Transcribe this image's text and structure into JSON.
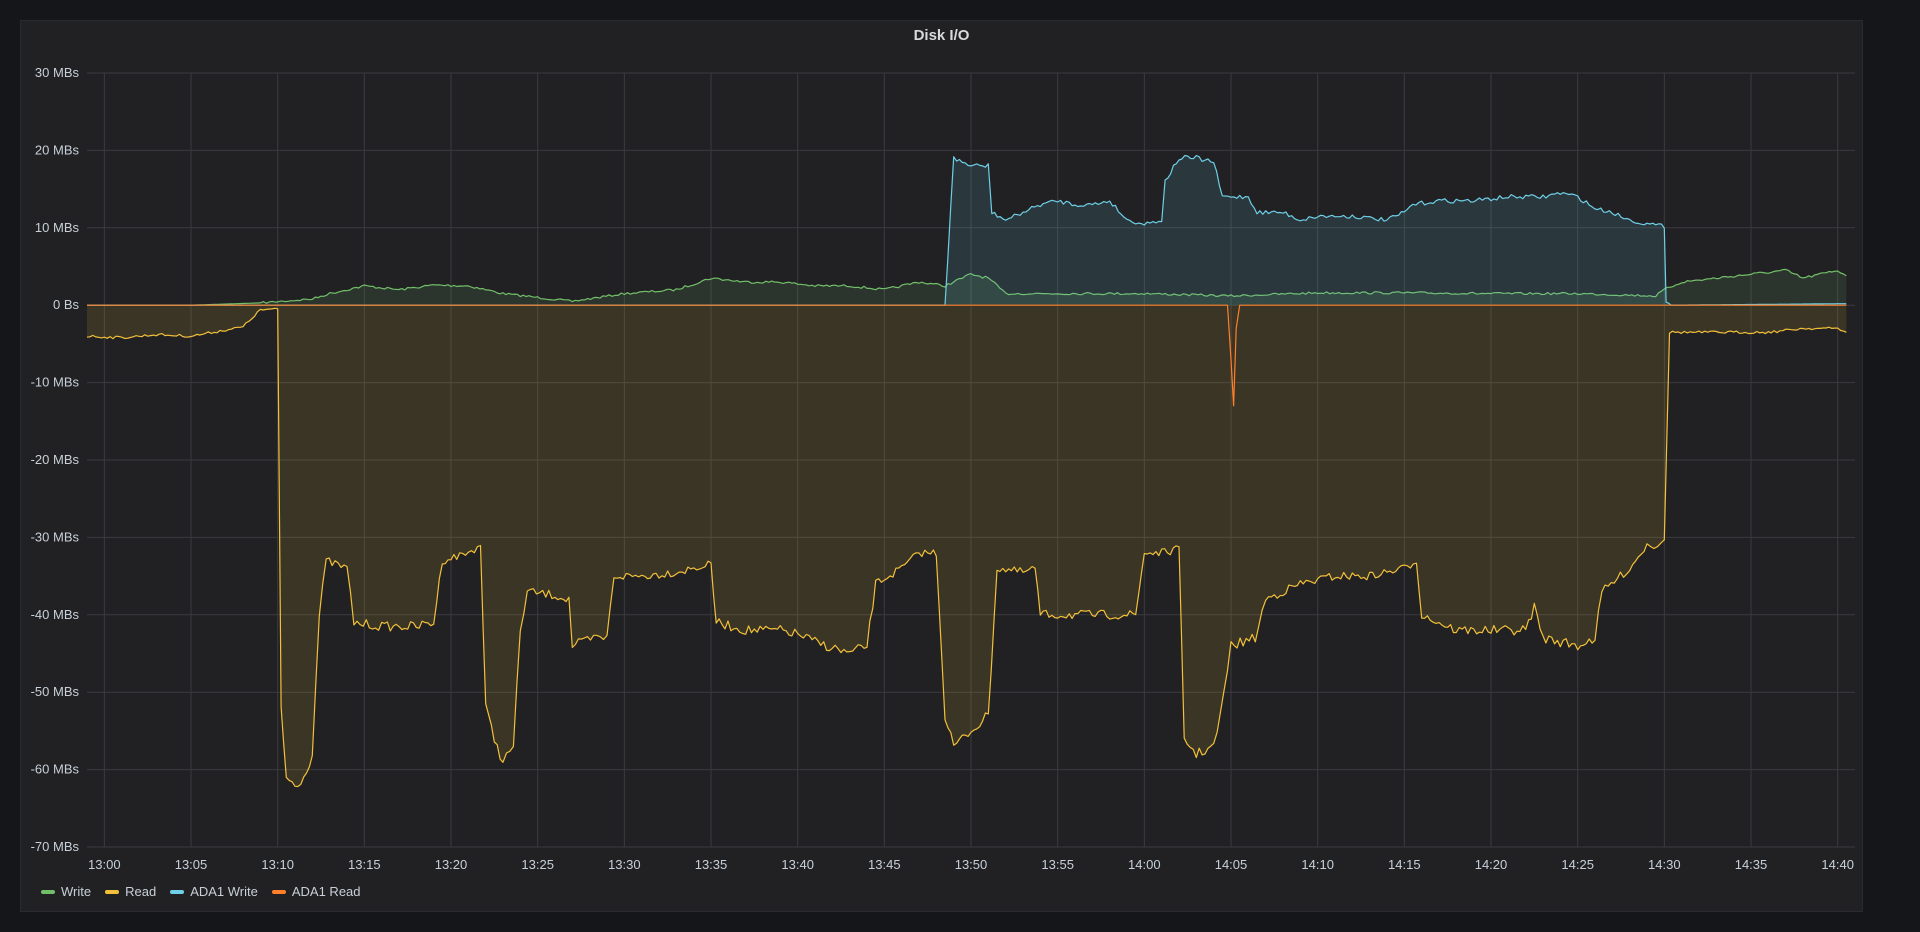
{
  "panel": {
    "title": "Disk I/O"
  },
  "colors": {
    "write": "#73bf69",
    "read": "#f2c039",
    "ada1_write": "#6ecfe6",
    "ada1_read": "#ff7f2a",
    "grid": "#3a3b40"
  },
  "chart_data": {
    "type": "line",
    "title": "Disk I/O",
    "xlabel": "",
    "ylabel": "",
    "ylim": [
      -70,
      30
    ],
    "xlim": [
      "12:59",
      "14:41"
    ],
    "y_ticks": [
      "30 MBs",
      "20 MBs",
      "10 MBs",
      "0 Bs",
      "-10 MBs",
      "-20 MBs",
      "-30 MBs",
      "-40 MBs",
      "-50 MBs",
      "-60 MBs",
      "-70 MBs"
    ],
    "y_tick_values": [
      30,
      20,
      10,
      0,
      -10,
      -20,
      -30,
      -40,
      -50,
      -60,
      -70
    ],
    "x_ticks": [
      "13:00",
      "13:05",
      "13:10",
      "13:15",
      "13:20",
      "13:25",
      "13:30",
      "13:35",
      "13:40",
      "13:45",
      "13:50",
      "13:55",
      "14:00",
      "14:05",
      "14:10",
      "14:15",
      "14:20",
      "14:25",
      "14:30",
      "14:35",
      "14:40"
    ],
    "grid": true,
    "legend_position": "bottom-left",
    "series": [
      {
        "name": "Write",
        "fill": true,
        "points": [
          [
            "12:59",
            0
          ],
          [
            "13:05",
            0
          ],
          [
            "13:09",
            0.3
          ],
          [
            "13:12",
            0.8
          ],
          [
            "13:13",
            1.5
          ],
          [
            "13:15",
            2.5
          ],
          [
            "13:17",
            2
          ],
          [
            "13:19",
            2.6
          ],
          [
            "13:21",
            2.5
          ],
          [
            "13:23",
            1.5
          ],
          [
            "13:25",
            1
          ],
          [
            "13:27",
            0.5
          ],
          [
            "13:30",
            1.5
          ],
          [
            "13:33",
            2
          ],
          [
            "13:35",
            3.5
          ],
          [
            "13:37",
            3
          ],
          [
            "13:39",
            3
          ],
          [
            "13:41",
            2.5
          ],
          [
            "13:43",
            2.5
          ],
          [
            "13:45",
            2
          ],
          [
            "13:47",
            3
          ],
          [
            "13:48.5",
            2.5
          ],
          [
            "13:50",
            4
          ],
          [
            "13:51",
            3.5
          ],
          [
            "13:52",
            1.5
          ],
          [
            "13:55",
            1.5
          ],
          [
            "14:00",
            1.5
          ],
          [
            "14:05",
            1.2
          ],
          [
            "14:10",
            1.6
          ],
          [
            "14:15",
            1.6
          ],
          [
            "14:20",
            1.5
          ],
          [
            "14:25",
            1.5
          ],
          [
            "14:29.5",
            1.2
          ],
          [
            "14:30",
            2
          ],
          [
            "14:31",
            3
          ],
          [
            "14:33",
            3.5
          ],
          [
            "14:35",
            4
          ],
          [
            "14:37",
            4.5
          ],
          [
            "14:38",
            3.5
          ],
          [
            "14:39",
            4
          ],
          [
            "14:40",
            4.5
          ],
          [
            "14:40.5",
            3.8
          ]
        ]
      },
      {
        "name": "Read",
        "fill": true,
        "points": [
          [
            "12:59",
            -4
          ],
          [
            "13:01",
            -4.2
          ],
          [
            "13:03",
            -3.8
          ],
          [
            "13:05",
            -4
          ],
          [
            "13:07",
            -3.2
          ],
          [
            "13:08",
            -2.8
          ],
          [
            "13:09",
            -0.6
          ],
          [
            "13:10",
            -0.5
          ],
          [
            "13:10.2",
            -52
          ],
          [
            "13:10.5",
            -61
          ],
          [
            "13:11",
            -62
          ],
          [
            "13:11.5",
            -61
          ],
          [
            "13:12",
            -58
          ],
          [
            "13:12.4",
            -40
          ],
          [
            "13:12.8",
            -33
          ],
          [
            "13:14",
            -34
          ],
          [
            "13:14.4",
            -41
          ],
          [
            "13:16",
            -41.5
          ],
          [
            "13:18",
            -41.5
          ],
          [
            "13:19",
            -41
          ],
          [
            "13:19.5",
            -33
          ],
          [
            "13:21",
            -32
          ],
          [
            "13:21.7",
            -31
          ],
          [
            "13:22",
            -52
          ],
          [
            "13:22.5",
            -56
          ],
          [
            "13:23",
            -59
          ],
          [
            "13:23.6",
            -57
          ],
          [
            "13:24",
            -42
          ],
          [
            "13:24.4",
            -37
          ],
          [
            "13:26",
            -37.5
          ],
          [
            "13:26.8",
            -38
          ],
          [
            "13:27",
            -44
          ],
          [
            "13:28.4",
            -43
          ],
          [
            "13:29",
            -43
          ],
          [
            "13:29.4",
            -35
          ],
          [
            "13:31",
            -35
          ],
          [
            "13:33",
            -34.5
          ],
          [
            "13:34",
            -34
          ],
          [
            "13:35",
            -33.5
          ],
          [
            "13:35.3",
            -41
          ],
          [
            "13:37",
            -42
          ],
          [
            "13:39",
            -42
          ],
          [
            "13:40",
            -42.5
          ],
          [
            "13:41",
            -43.5
          ],
          [
            "13:43",
            -45
          ],
          [
            "13:44",
            -44
          ],
          [
            "13:44.5",
            -36
          ],
          [
            "13:46",
            -34
          ],
          [
            "13:47",
            -32
          ],
          [
            "13:48",
            -32
          ],
          [
            "13:48.5",
            -53
          ],
          [
            "13:49",
            -57
          ],
          [
            "13:50",
            -55
          ],
          [
            "13:51",
            -53
          ],
          [
            "13:51.5",
            -34
          ],
          [
            "13:53",
            -34.5
          ],
          [
            "13:53.7",
            -34
          ],
          [
            "13:54",
            -40
          ],
          [
            "13:56",
            -40
          ],
          [
            "13:58",
            -40
          ],
          [
            "13:59.5",
            -40
          ],
          [
            "14:00",
            -32
          ],
          [
            "14:01",
            -32
          ],
          [
            "14:02",
            -31.5
          ],
          [
            "14:02.3",
            -56
          ],
          [
            "14:03",
            -58
          ],
          [
            "14:04",
            -57
          ],
          [
            "14:04.4",
            -53
          ],
          [
            "14:05",
            -44
          ],
          [
            "14:06.4",
            -43
          ],
          [
            "14:07",
            -38
          ],
          [
            "14:09",
            -36
          ],
          [
            "14:11",
            -35
          ],
          [
            "14:13",
            -35
          ],
          [
            "14:15",
            -34
          ],
          [
            "14:15.7",
            -33
          ],
          [
            "14:16",
            -40
          ],
          [
            "14:18",
            -42
          ],
          [
            "14:20",
            -42
          ],
          [
            "14:22",
            -42
          ],
          [
            "14:22.5",
            -39
          ],
          [
            "14:23",
            -43
          ],
          [
            "14:25",
            -44
          ],
          [
            "14:26",
            -43
          ],
          [
            "14:26.4",
            -37
          ],
          [
            "14:28",
            -34
          ],
          [
            "14:29",
            -31
          ],
          [
            "14:29.6",
            -31
          ],
          [
            "14:30",
            -30
          ],
          [
            "14:30.3",
            -3.5
          ],
          [
            "14:32",
            -3.5
          ],
          [
            "14:34",
            -3.5
          ],
          [
            "14:36",
            -3.5
          ],
          [
            "14:38",
            -3
          ],
          [
            "14:40",
            -3
          ],
          [
            "14:40.5",
            -3.5
          ]
        ]
      },
      {
        "name": "ADA1 Write",
        "fill": true,
        "points": [
          [
            "12:59",
            0
          ],
          [
            "13:48.5",
            0
          ],
          [
            "13:49",
            19
          ],
          [
            "13:50",
            18
          ],
          [
            "13:51",
            18
          ],
          [
            "13:51.2",
            12
          ],
          [
            "13:52",
            11
          ],
          [
            "13:53",
            12
          ],
          [
            "13:54",
            13
          ],
          [
            "13:55",
            13.5
          ],
          [
            "13:56",
            13
          ],
          [
            "13:57",
            13
          ],
          [
            "13:58",
            13.5
          ],
          [
            "13:59",
            11
          ],
          [
            "14:00",
            10.5
          ],
          [
            "14:01",
            11
          ],
          [
            "14:01.2",
            16
          ],
          [
            "14:02",
            19
          ],
          [
            "14:03",
            19
          ],
          [
            "14:04",
            18.5
          ],
          [
            "14:04.5",
            14
          ],
          [
            "14:05",
            14
          ],
          [
            "14:06",
            14
          ],
          [
            "14:06.5",
            12
          ],
          [
            "14:08",
            12
          ],
          [
            "14:09",
            11
          ],
          [
            "14:10",
            11.5
          ],
          [
            "14:12",
            11.5
          ],
          [
            "14:14",
            11
          ],
          [
            "14:15",
            12
          ],
          [
            "14:15.5",
            13
          ],
          [
            "14:17",
            13.5
          ],
          [
            "14:19",
            13.5
          ],
          [
            "14:21",
            14
          ],
          [
            "14:23",
            14
          ],
          [
            "14:24",
            14.5
          ],
          [
            "14:25",
            14
          ],
          [
            "14:26",
            12.5
          ],
          [
            "14:27",
            12
          ],
          [
            "14:28",
            11
          ],
          [
            "14:29",
            10.5
          ],
          [
            "14:30",
            10.2
          ],
          [
            "14:30.1",
            0.5
          ],
          [
            "14:30.4",
            0
          ],
          [
            "14:40.5",
            0.2
          ]
        ]
      },
      {
        "name": "ADA1 Read",
        "fill": false,
        "points": [
          [
            "12:59",
            0
          ],
          [
            "14:04.8",
            0
          ],
          [
            "14:05",
            -7
          ],
          [
            "14:05.15",
            -13
          ],
          [
            "14:05.3",
            -3
          ],
          [
            "14:05.5",
            0
          ],
          [
            "14:40.5",
            0
          ]
        ]
      }
    ]
  },
  "legend": [
    {
      "label": "Write",
      "color_key": "write"
    },
    {
      "label": "Read",
      "color_key": "read"
    },
    {
      "label": "ADA1 Write",
      "color_key": "ada1_write"
    },
    {
      "label": "ADA1 Read",
      "color_key": "ada1_read"
    }
  ]
}
